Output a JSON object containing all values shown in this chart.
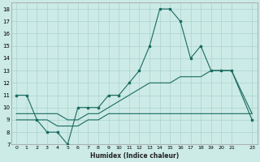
{
  "xlabel": "Humidex (Indice chaleur)",
  "bg_color": "#cceae6",
  "grid_color": "#aad4ce",
  "line_color": "#1a6b60",
  "xlim": [
    -0.5,
    23.5
  ],
  "ylim": [
    7,
    18.5
  ],
  "xtick_vals": [
    0,
    1,
    2,
    3,
    4,
    5,
    6,
    7,
    8,
    9,
    10,
    11,
    12,
    13,
    14,
    15,
    16,
    17,
    18,
    19,
    20,
    21,
    23
  ],
  "ytick_vals": [
    7,
    8,
    9,
    10,
    11,
    12,
    13,
    14,
    15,
    16,
    17,
    18
  ],
  "line1_x": [
    0,
    1,
    2,
    3,
    4,
    5,
    6,
    7,
    8,
    9,
    10,
    11,
    12,
    13,
    14,
    15,
    16,
    17,
    18,
    19,
    20,
    21,
    23
  ],
  "line1_y": [
    11,
    11,
    9,
    8,
    8,
    7,
    10,
    10,
    10,
    11,
    11,
    12,
    13,
    15,
    18,
    18,
    17,
    14,
    15,
    13,
    13,
    13,
    9
  ],
  "line2_x": [
    0,
    1,
    2,
    3,
    4,
    5,
    6,
    7,
    8,
    9,
    10,
    11,
    12,
    13,
    14,
    15,
    16,
    17,
    18,
    19,
    20,
    21,
    23
  ],
  "line2_y": [
    9.0,
    9.0,
    9.0,
    9.0,
    8.5,
    8.5,
    8.5,
    9.0,
    9.0,
    9.5,
    9.5,
    9.5,
    9.5,
    9.5,
    9.5,
    9.5,
    9.5,
    9.5,
    9.5,
    9.5,
    9.5,
    9.5,
    9.5
  ],
  "line3_x": [
    0,
    1,
    2,
    3,
    4,
    5,
    6,
    7,
    8,
    9,
    10,
    11,
    12,
    13,
    14,
    15,
    16,
    17,
    18,
    19,
    20,
    21,
    23
  ],
  "line3_y": [
    9.5,
    9.5,
    9.5,
    9.5,
    9.5,
    9.0,
    9.0,
    9.5,
    9.5,
    10.0,
    10.5,
    11.0,
    11.5,
    12.0,
    12.0,
    12.0,
    12.5,
    12.5,
    12.5,
    13.0,
    13.0,
    13.0,
    9.5
  ]
}
